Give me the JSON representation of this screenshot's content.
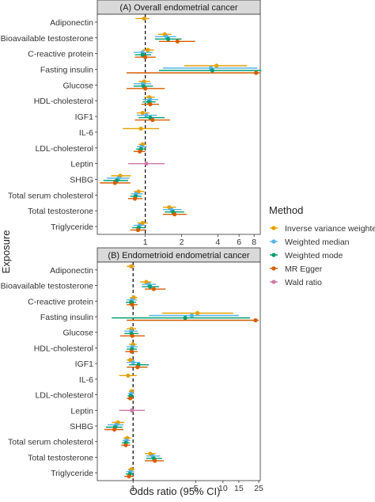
{
  "y_axis_title": "Exposure",
  "x_axis_title": "Odds ratio (95% CI)",
  "legend": {
    "title": "Method",
    "position": "right",
    "items": [
      {
        "name": "Inverse variance weighted",
        "color": "#E69F00"
      },
      {
        "name": "Weighted median",
        "color": "#56B4E9"
      },
      {
        "name": "Weighted mode",
        "color": "#009E73"
      },
      {
        "name": "MR Egger",
        "color": "#D55E00"
      },
      {
        "name": "Wald ratio",
        "color": "#CC79A7"
      }
    ]
  },
  "chart_data": [
    {
      "type": "forest",
      "title": "(A) Overall endometrial cancer",
      "x_scale": "log",
      "xlim": [
        0.4,
        9
      ],
      "xticks": [
        1,
        2,
        4,
        6,
        8
      ],
      "reference_line": 1,
      "grid": false,
      "categories": [
        "Adiponectin",
        "Bioavailable testosterone",
        "C-reactive protein",
        "Fasting insulin",
        "Glucose",
        "HDL-cholesterol",
        "IGF1",
        "IL-6",
        "LDL-cholesterol",
        "Leptin",
        "SHBG",
        "Total serum cholesterol",
        "Total testosterone",
        "Triglyceride"
      ],
      "rows": [
        {
          "exposure": "Adiponectin",
          "estimates": [
            {
              "method": "Inverse variance weighted",
              "or": 0.98,
              "lo": 0.83,
              "hi": 1.08
            }
          ]
        },
        {
          "exposure": "Bioavailable testosterone",
          "estimates": [
            {
              "method": "Inverse variance weighted",
              "or": 1.45,
              "lo": 1.28,
              "hi": 1.65
            },
            {
              "method": "Weighted median",
              "or": 1.5,
              "lo": 1.2,
              "hi": 1.8
            },
            {
              "method": "Weighted mode",
              "or": 1.55,
              "lo": 1.2,
              "hi": 2.0
            },
            {
              "method": "MR Egger",
              "or": 1.85,
              "lo": 1.3,
              "hi": 2.6
            }
          ]
        },
        {
          "exposure": "C-reactive protein",
          "estimates": [
            {
              "method": "Inverse variance weighted",
              "or": 1.05,
              "lo": 0.95,
              "hi": 1.18
            },
            {
              "method": "Weighted median",
              "or": 0.95,
              "lo": 0.8,
              "hi": 1.15
            },
            {
              "method": "Weighted mode",
              "or": 0.95,
              "lo": 0.82,
              "hi": 1.12
            },
            {
              "method": "MR Egger",
              "or": 1.0,
              "lo": 0.82,
              "hi": 1.22
            }
          ]
        },
        {
          "exposure": "Fasting insulin",
          "estimates": [
            {
              "method": "Inverse variance weighted",
              "or": 3.9,
              "lo": 2.1,
              "hi": 7.0
            },
            {
              "method": "Weighted median",
              "or": 3.5,
              "lo": 1.4,
              "hi": 8.5
            },
            {
              "method": "Weighted mode",
              "or": 3.6,
              "lo": 1.3,
              "hi": 9.2
            },
            {
              "method": "MR Egger",
              "or": 8.3,
              "lo": 0.7,
              "hi": 9.0
            }
          ]
        },
        {
          "exposure": "Glucose",
          "estimates": [
            {
              "method": "Inverse variance weighted",
              "or": 0.98,
              "lo": 0.88,
              "hi": 1.1
            },
            {
              "method": "Weighted median",
              "or": 0.95,
              "lo": 0.8,
              "hi": 1.12
            },
            {
              "method": "Weighted mode",
              "or": 0.97,
              "lo": 0.8,
              "hi": 1.16
            },
            {
              "method": "MR Egger",
              "or": 1.0,
              "lo": 0.7,
              "hi": 1.45
            }
          ]
        },
        {
          "exposure": "HDL-cholesterol",
          "estimates": [
            {
              "method": "Inverse variance weighted",
              "or": 1.08,
              "lo": 0.98,
              "hi": 1.2
            },
            {
              "method": "Weighted median",
              "or": 1.1,
              "lo": 0.95,
              "hi": 1.28
            },
            {
              "method": "Weighted mode",
              "or": 1.07,
              "lo": 0.95,
              "hi": 1.22
            },
            {
              "method": "MR Egger",
              "or": 1.1,
              "lo": 0.93,
              "hi": 1.3
            }
          ]
        },
        {
          "exposure": "IGF1",
          "estimates": [
            {
              "method": "Inverse variance weighted",
              "or": 0.95,
              "lo": 0.85,
              "hi": 1.08
            },
            {
              "method": "Weighted median",
              "or": 1.02,
              "lo": 0.85,
              "hi": 1.25
            },
            {
              "method": "Weighted mode",
              "or": 1.1,
              "lo": 0.88,
              "hi": 1.45
            },
            {
              "method": "MR Egger",
              "or": 1.15,
              "lo": 0.82,
              "hi": 1.6
            }
          ]
        },
        {
          "exposure": "IL-6",
          "estimates": [
            {
              "method": "Inverse variance weighted",
              "or": 0.92,
              "lo": 0.65,
              "hi": 1.3
            }
          ]
        },
        {
          "exposure": "LDL-cholesterol",
          "estimates": [
            {
              "method": "Inverse variance weighted",
              "or": 0.95,
              "lo": 0.88,
              "hi": 1.02
            },
            {
              "method": "Weighted median",
              "or": 0.93,
              "lo": 0.85,
              "hi": 1.03
            },
            {
              "method": "Weighted mode",
              "or": 0.92,
              "lo": 0.84,
              "hi": 1.01
            },
            {
              "method": "MR Egger",
              "or": 0.9,
              "lo": 0.8,
              "hi": 1.0
            }
          ]
        },
        {
          "exposure": "Leptin",
          "estimates": [
            {
              "method": "Wald ratio",
              "or": 1.02,
              "lo": 0.72,
              "hi": 1.45
            }
          ]
        },
        {
          "exposure": "SHBG",
          "estimates": [
            {
              "method": "Inverse variance weighted",
              "or": 0.62,
              "lo": 0.52,
              "hi": 0.76
            },
            {
              "method": "Weighted median",
              "or": 0.6,
              "lo": 0.48,
              "hi": 0.74
            },
            {
              "method": "Weighted mode",
              "or": 0.58,
              "lo": 0.45,
              "hi": 0.72
            },
            {
              "method": "MR Egger",
              "or": 0.56,
              "lo": 0.42,
              "hi": 0.75
            }
          ]
        },
        {
          "exposure": "Total serum cholesterol",
          "estimates": [
            {
              "method": "Inverse variance weighted",
              "or": 0.88,
              "lo": 0.8,
              "hi": 0.98
            },
            {
              "method": "Weighted median",
              "or": 0.84,
              "lo": 0.76,
              "hi": 0.95
            },
            {
              "method": "Weighted mode",
              "or": 0.83,
              "lo": 0.75,
              "hi": 0.93
            },
            {
              "method": "MR Egger",
              "or": 0.82,
              "lo": 0.72,
              "hi": 0.95
            }
          ]
        },
        {
          "exposure": "Total testosterone",
          "estimates": [
            {
              "method": "Inverse variance weighted",
              "or": 1.58,
              "lo": 1.4,
              "hi": 1.8
            },
            {
              "method": "Weighted median",
              "or": 1.65,
              "lo": 1.4,
              "hi": 2.0
            },
            {
              "method": "Weighted mode",
              "or": 1.7,
              "lo": 1.45,
              "hi": 2.1
            },
            {
              "method": "MR Egger",
              "or": 1.75,
              "lo": 1.4,
              "hi": 2.2
            }
          ]
        },
        {
          "exposure": "Triglyceride",
          "estimates": [
            {
              "method": "Inverse variance weighted",
              "or": 0.95,
              "lo": 0.86,
              "hi": 1.05
            },
            {
              "method": "Weighted median",
              "or": 0.9,
              "lo": 0.8,
              "hi": 1.02
            },
            {
              "method": "Weighted mode",
              "or": 0.88,
              "lo": 0.78,
              "hi": 1.0
            },
            {
              "method": "MR Egger",
              "or": 0.87,
              "lo": 0.75,
              "hi": 1.02
            }
          ]
        }
      ]
    },
    {
      "type": "forest",
      "title": "(B) Endometrioid endometrial cancer",
      "x_scale": "log",
      "xlim": [
        0.4,
        26
      ],
      "xticks": [
        1,
        5,
        10,
        15,
        25
      ],
      "reference_line": 1,
      "grid": false,
      "categories": [
        "Adiponectin",
        "Bioavailable testosterone",
        "C-reactive protein",
        "Fasting insulin",
        "Glucose",
        "HDL-cholesterol",
        "IGF1",
        "IL-6",
        "LDL-cholesterol",
        "Leptin",
        "SHBG",
        "Total serum cholesterol",
        "Total testosterone",
        "Triglyceride"
      ],
      "rows": [
        {
          "exposure": "Adiponectin",
          "estimates": [
            {
              "method": "Inverse variance weighted",
              "or": 0.95,
              "lo": 0.85,
              "hi": 1.05
            }
          ]
        },
        {
          "exposure": "Bioavailable testosterone",
          "estimates": [
            {
              "method": "Inverse variance weighted",
              "or": 1.4,
              "lo": 1.2,
              "hi": 1.6
            },
            {
              "method": "Weighted median",
              "or": 1.5,
              "lo": 1.25,
              "hi": 1.8
            },
            {
              "method": "Weighted mode",
              "or": 1.55,
              "lo": 1.25,
              "hi": 1.95
            },
            {
              "method": "MR Egger",
              "or": 1.7,
              "lo": 1.35,
              "hi": 2.3
            }
          ]
        },
        {
          "exposure": "C-reactive protein",
          "estimates": [
            {
              "method": "Inverse variance weighted",
              "or": 1.02,
              "lo": 0.92,
              "hi": 1.12
            },
            {
              "method": "Weighted median",
              "or": 0.97,
              "lo": 0.85,
              "hi": 1.1
            },
            {
              "method": "Weighted mode",
              "or": 0.95,
              "lo": 0.83,
              "hi": 1.08
            },
            {
              "method": "MR Egger",
              "or": 0.98,
              "lo": 0.85,
              "hi": 1.12
            }
          ]
        },
        {
          "exposure": "Fasting insulin",
          "estimates": [
            {
              "method": "Inverse variance weighted",
              "or": 5.2,
              "lo": 2.1,
              "hi": 13.0
            },
            {
              "method": "Weighted median",
              "or": 4.5,
              "lo": 1.5,
              "hi": 15.0
            },
            {
              "method": "Weighted mode",
              "or": 3.8,
              "lo": 0.58,
              "hi": 20.0
            },
            {
              "method": "MR Egger",
              "or": 23.0,
              "lo": 0.85,
              "hi": 25.0
            }
          ]
        },
        {
          "exposure": "Glucose",
          "estimates": [
            {
              "method": "Inverse variance weighted",
              "or": 0.96,
              "lo": 0.85,
              "hi": 1.08
            },
            {
              "method": "Weighted median",
              "or": 0.95,
              "lo": 0.8,
              "hi": 1.12
            },
            {
              "method": "Weighted mode",
              "or": 0.96,
              "lo": 0.8,
              "hi": 1.15
            },
            {
              "method": "MR Egger",
              "or": 0.98,
              "lo": 0.72,
              "hi": 1.35
            }
          ]
        },
        {
          "exposure": "HDL-cholesterol",
          "estimates": [
            {
              "method": "Inverse variance weighted",
              "or": 1.0,
              "lo": 0.9,
              "hi": 1.1
            },
            {
              "method": "Weighted median",
              "or": 0.98,
              "lo": 0.85,
              "hi": 1.12
            },
            {
              "method": "Weighted mode",
              "or": 0.97,
              "lo": 0.85,
              "hi": 1.1
            },
            {
              "method": "MR Egger",
              "or": 0.96,
              "lo": 0.82,
              "hi": 1.12
            }
          ]
        },
        {
          "exposure": "IGF1",
          "estimates": [
            {
              "method": "Inverse variance weighted",
              "or": 0.93,
              "lo": 0.85,
              "hi": 1.03
            },
            {
              "method": "Weighted median",
              "or": 1.0,
              "lo": 0.85,
              "hi": 1.2
            },
            {
              "method": "Weighted mode",
              "or": 1.15,
              "lo": 0.9,
              "hi": 1.5
            },
            {
              "method": "MR Egger",
              "or": 1.12,
              "lo": 0.85,
              "hi": 1.45
            }
          ]
        },
        {
          "exposure": "IL-6",
          "estimates": [
            {
              "method": "Inverse variance weighted",
              "or": 0.88,
              "lo": 0.7,
              "hi": 1.1
            }
          ]
        },
        {
          "exposure": "LDL-cholesterol",
          "estimates": [
            {
              "method": "Inverse variance weighted",
              "or": 0.96,
              "lo": 0.9,
              "hi": 1.03
            },
            {
              "method": "Weighted median",
              "or": 0.95,
              "lo": 0.88,
              "hi": 1.03
            },
            {
              "method": "Weighted mode",
              "or": 0.94,
              "lo": 0.87,
              "hi": 1.02
            },
            {
              "method": "MR Egger",
              "or": 0.93,
              "lo": 0.85,
              "hi": 1.02
            }
          ]
        },
        {
          "exposure": "Leptin",
          "estimates": [
            {
              "method": "Wald ratio",
              "or": 0.97,
              "lo": 0.7,
              "hi": 1.35
            }
          ]
        },
        {
          "exposure": "SHBG",
          "estimates": [
            {
              "method": "Inverse variance weighted",
              "or": 0.68,
              "lo": 0.58,
              "hi": 0.8
            },
            {
              "method": "Weighted median",
              "or": 0.65,
              "lo": 0.52,
              "hi": 0.78
            },
            {
              "method": "Weighted mode",
              "or": 0.63,
              "lo": 0.5,
              "hi": 0.76
            },
            {
              "method": "MR Egger",
              "or": 0.62,
              "lo": 0.48,
              "hi": 0.78
            }
          ]
        },
        {
          "exposure": "Total serum cholesterol",
          "estimates": [
            {
              "method": "Inverse variance weighted",
              "or": 0.86,
              "lo": 0.78,
              "hi": 0.95
            },
            {
              "method": "Weighted median",
              "or": 0.84,
              "lo": 0.76,
              "hi": 0.93
            },
            {
              "method": "Weighted mode",
              "or": 0.83,
              "lo": 0.75,
              "hi": 0.92
            },
            {
              "method": "MR Egger",
              "or": 0.83,
              "lo": 0.74,
              "hi": 0.93
            }
          ]
        },
        {
          "exposure": "Total testosterone",
          "estimates": [
            {
              "method": "Inverse variance weighted",
              "or": 1.55,
              "lo": 1.35,
              "hi": 1.8
            },
            {
              "method": "Weighted median",
              "or": 1.65,
              "lo": 1.4,
              "hi": 2.0
            },
            {
              "method": "Weighted mode",
              "or": 1.7,
              "lo": 1.4,
              "hi": 2.1
            },
            {
              "method": "MR Egger",
              "or": 1.75,
              "lo": 1.35,
              "hi": 2.2
            }
          ]
        },
        {
          "exposure": "Triglyceride",
          "estimates": [
            {
              "method": "Inverse variance weighted",
              "or": 0.96,
              "lo": 0.88,
              "hi": 1.04
            },
            {
              "method": "Weighted median",
              "or": 0.93,
              "lo": 0.84,
              "hi": 1.03
            },
            {
              "method": "Weighted mode",
              "or": 0.92,
              "lo": 0.83,
              "hi": 1.02
            },
            {
              "method": "MR Egger",
              "or": 0.9,
              "lo": 0.8,
              "hi": 1.02
            }
          ]
        }
      ]
    }
  ]
}
